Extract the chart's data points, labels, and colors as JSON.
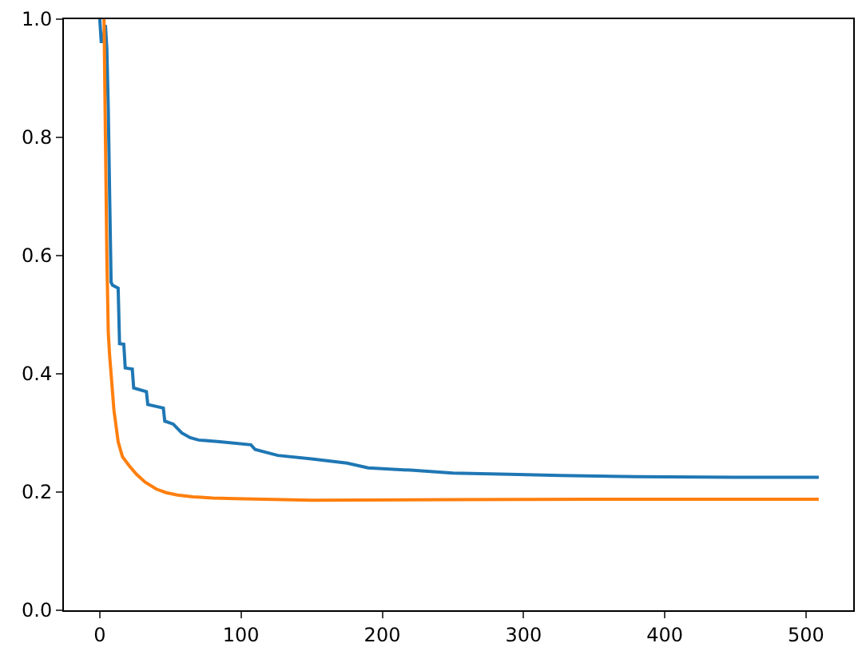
{
  "chart_data": {
    "type": "line",
    "xlim": [
      -25.4,
      533.4
    ],
    "ylim": [
      0,
      1
    ],
    "xticks": [
      0,
      100,
      200,
      300,
      400,
      500
    ],
    "yticks": [
      {
        "value": 0,
        "label": "0.0"
      },
      {
        "value": 0.2,
        "label": "0.2"
      },
      {
        "value": 0.4,
        "label": "0.4"
      },
      {
        "value": 0.6,
        "label": "0.6"
      },
      {
        "value": 0.8,
        "label": "0.8"
      },
      {
        "value": 1,
        "label": "1.0"
      }
    ],
    "grid": false,
    "marker": "none",
    "line_style": "solid",
    "series": [
      {
        "color": "#1f77b4",
        "x": [
          0,
          1,
          2,
          4,
          5,
          6,
          7,
          8,
          9,
          13,
          14,
          17,
          18,
          23,
          24,
          33,
          34,
          45,
          46,
          52,
          58,
          64,
          70,
          85,
          107,
          110,
          126,
          150,
          175,
          190,
          220,
          250,
          290,
          326,
          380,
          450,
          509
        ],
        "values": [
          1.0,
          0.962,
          0.962,
          0.99,
          0.95,
          0.85,
          0.7,
          0.555,
          0.55,
          0.545,
          0.451,
          0.45,
          0.41,
          0.408,
          0.376,
          0.37,
          0.348,
          0.342,
          0.32,
          0.315,
          0.3,
          0.292,
          0.288,
          0.285,
          0.28,
          0.272,
          0.262,
          0.256,
          0.249,
          0.241,
          0.237,
          0.232,
          0.23,
          0.228,
          0.226,
          0.225,
          0.225
        ]
      },
      {
        "color": "#ff7f0e",
        "x": [
          3,
          4,
          5,
          6,
          7,
          8,
          10,
          13,
          16,
          21,
          26,
          32,
          40,
          47,
          55,
          66,
          80,
          96,
          150,
          250,
          350,
          509
        ],
        "values": [
          1.0,
          0.8,
          0.6,
          0.47,
          0.43,
          0.4,
          0.339,
          0.285,
          0.26,
          0.244,
          0.23,
          0.217,
          0.205,
          0.199,
          0.195,
          0.192,
          0.19,
          0.189,
          0.186,
          0.187,
          0.188,
          0.188
        ]
      }
    ]
  }
}
